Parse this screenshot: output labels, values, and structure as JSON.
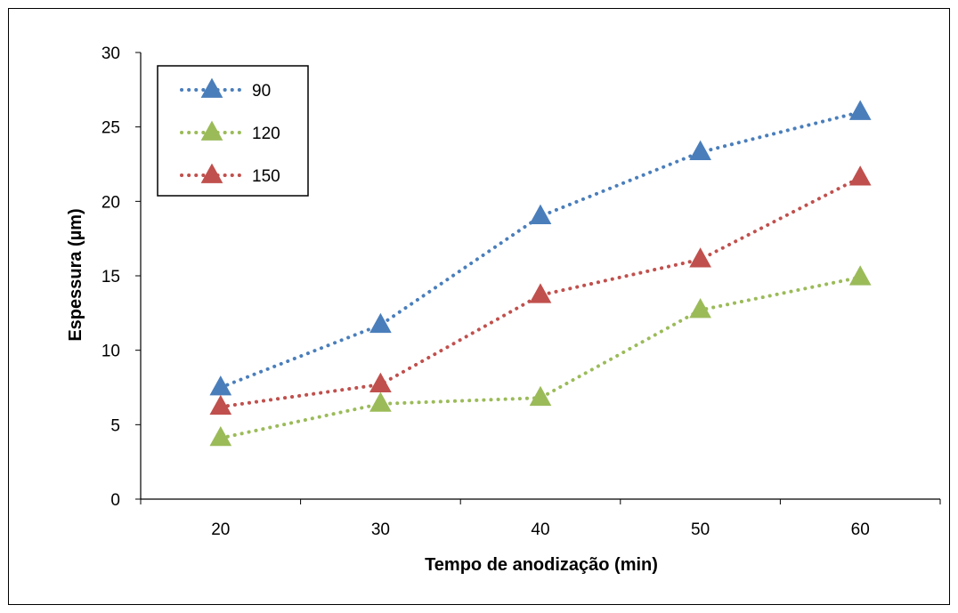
{
  "chart_data": {
    "type": "line",
    "title": "",
    "xlabel": "Tempo de anodização (min)",
    "ylabel": "Espessura (µm)",
    "categories": [
      "20",
      "30",
      "40",
      "50",
      "60"
    ],
    "ylim": [
      0,
      30
    ],
    "yticks": [
      "0",
      "5",
      "10",
      "15",
      "20",
      "25",
      "30"
    ],
    "grid": false,
    "legend_position": "top-left",
    "series": [
      {
        "name": "90",
        "color": "#4A7EBB",
        "marker": "triangle",
        "line_style": "dotted",
        "values": [
          7.5,
          11.7,
          19.0,
          23.3,
          26.0
        ]
      },
      {
        "name": "120",
        "color": "#9BBB59",
        "marker": "triangle",
        "line_style": "dotted",
        "values": [
          4.1,
          6.4,
          6.8,
          12.7,
          14.9
        ]
      },
      {
        "name": "150",
        "color": "#C0504D",
        "marker": "triangle",
        "line_style": "dotted",
        "values": [
          6.2,
          7.7,
          13.7,
          16.1,
          21.6
        ]
      }
    ]
  }
}
